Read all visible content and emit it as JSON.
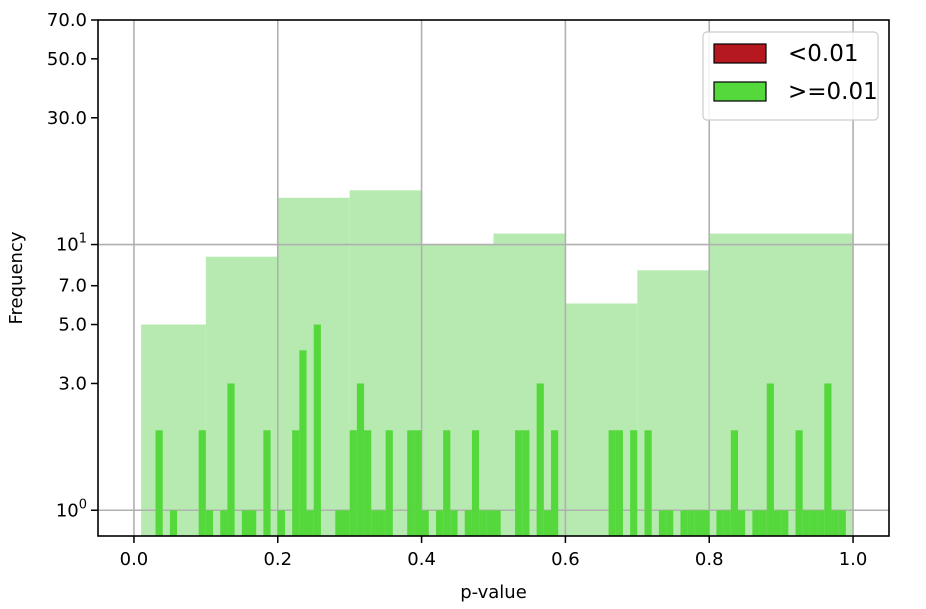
{
  "chart_data": {
    "type": "bar",
    "xlabel": "p-value",
    "ylabel": "Frequency",
    "yscale": "log",
    "xlim": [
      -0.05,
      1.05
    ],
    "ylim": [
      0.8,
      70
    ],
    "grid": true,
    "legend_position": "top-right",
    "x_ticks": [
      {
        "value": 0.0,
        "label": "0.0"
      },
      {
        "value": 0.2,
        "label": "0.2"
      },
      {
        "value": 0.4,
        "label": "0.4"
      },
      {
        "value": 0.6,
        "label": "0.6"
      },
      {
        "value": 0.8,
        "label": "0.8"
      },
      {
        "value": 1.0,
        "label": "1.0"
      }
    ],
    "y_ticks": [
      {
        "value": 1,
        "base": "10",
        "exp": "0"
      },
      {
        "value": 3,
        "label": "3.0"
      },
      {
        "value": 5,
        "label": "5.0"
      },
      {
        "value": 7,
        "label": "7.0"
      },
      {
        "value": 10,
        "base": "10",
        "exp": "1"
      },
      {
        "value": 30,
        "label": "30.0"
      },
      {
        "value": 50,
        "label": "50.0"
      },
      {
        "value": 70,
        "label": "70.0"
      }
    ],
    "legend": [
      {
        "label": "<0.01",
        "color": "#b5191f"
      },
      {
        "label": ">=0.01",
        "color": "#55d83c"
      }
    ],
    "coarse_bins": {
      "color": "#b7eab0",
      "bins": [
        {
          "x0": 0.01,
          "x1": 0.1,
          "count": 5
        },
        {
          "x0": 0.1,
          "x1": 0.2,
          "count": 9
        },
        {
          "x0": 0.2,
          "x1": 0.3,
          "count": 15
        },
        {
          "x0": 0.3,
          "x1": 0.4,
          "count": 16
        },
        {
          "x0": 0.4,
          "x1": 0.5,
          "count": 10
        },
        {
          "x0": 0.5,
          "x1": 0.6,
          "count": 11
        },
        {
          "x0": 0.6,
          "x1": 0.7,
          "count": 6
        },
        {
          "x0": 0.7,
          "x1": 0.8,
          "count": 8
        },
        {
          "x0": 0.8,
          "x1": 1.0,
          "count": 11
        }
      ]
    },
    "fine_bins": {
      "color": "#55d83c",
      "bin_width": 0.01,
      "bins": [
        {
          "x": 0.03,
          "count": 2
        },
        {
          "x": 0.05,
          "count": 1
        },
        {
          "x": 0.09,
          "count": 2
        },
        {
          "x": 0.1,
          "count": 1
        },
        {
          "x": 0.12,
          "count": 1
        },
        {
          "x": 0.13,
          "count": 3
        },
        {
          "x": 0.15,
          "count": 1
        },
        {
          "x": 0.16,
          "count": 1
        },
        {
          "x": 0.18,
          "count": 2
        },
        {
          "x": 0.2,
          "count": 1
        },
        {
          "x": 0.22,
          "count": 2
        },
        {
          "x": 0.23,
          "count": 4
        },
        {
          "x": 0.24,
          "count": 1
        },
        {
          "x": 0.25,
          "count": 5
        },
        {
          "x": 0.28,
          "count": 1
        },
        {
          "x": 0.29,
          "count": 1
        },
        {
          "x": 0.3,
          "count": 2
        },
        {
          "x": 0.31,
          "count": 3
        },
        {
          "x": 0.32,
          "count": 2
        },
        {
          "x": 0.33,
          "count": 1
        },
        {
          "x": 0.34,
          "count": 1
        },
        {
          "x": 0.35,
          "count": 2
        },
        {
          "x": 0.38,
          "count": 2
        },
        {
          "x": 0.39,
          "count": 2
        },
        {
          "x": 0.4,
          "count": 1
        },
        {
          "x": 0.42,
          "count": 1
        },
        {
          "x": 0.43,
          "count": 2
        },
        {
          "x": 0.44,
          "count": 1
        },
        {
          "x": 0.46,
          "count": 1
        },
        {
          "x": 0.47,
          "count": 2
        },
        {
          "x": 0.48,
          "count": 1
        },
        {
          "x": 0.49,
          "count": 1
        },
        {
          "x": 0.5,
          "count": 1
        },
        {
          "x": 0.53,
          "count": 2
        },
        {
          "x": 0.54,
          "count": 2
        },
        {
          "x": 0.56,
          "count": 3
        },
        {
          "x": 0.57,
          "count": 1
        },
        {
          "x": 0.58,
          "count": 2
        },
        {
          "x": 0.66,
          "count": 2
        },
        {
          "x": 0.67,
          "count": 2
        },
        {
          "x": 0.69,
          "count": 2
        },
        {
          "x": 0.71,
          "count": 2
        },
        {
          "x": 0.73,
          "count": 1
        },
        {
          "x": 0.74,
          "count": 1
        },
        {
          "x": 0.76,
          "count": 1
        },
        {
          "x": 0.77,
          "count": 1
        },
        {
          "x": 0.78,
          "count": 1
        },
        {
          "x": 0.79,
          "count": 1
        },
        {
          "x": 0.81,
          "count": 1
        },
        {
          "x": 0.82,
          "count": 1
        },
        {
          "x": 0.83,
          "count": 2
        },
        {
          "x": 0.84,
          "count": 1
        },
        {
          "x": 0.86,
          "count": 1
        },
        {
          "x": 0.87,
          "count": 1
        },
        {
          "x": 0.88,
          "count": 3
        },
        {
          "x": 0.89,
          "count": 1
        },
        {
          "x": 0.9,
          "count": 1
        },
        {
          "x": 0.92,
          "count": 2
        },
        {
          "x": 0.93,
          "count": 1
        },
        {
          "x": 0.94,
          "count": 1
        },
        {
          "x": 0.95,
          "count": 1
        },
        {
          "x": 0.96,
          "count": 3
        },
        {
          "x": 0.97,
          "count": 1
        },
        {
          "x": 0.98,
          "count": 1
        }
      ]
    }
  }
}
